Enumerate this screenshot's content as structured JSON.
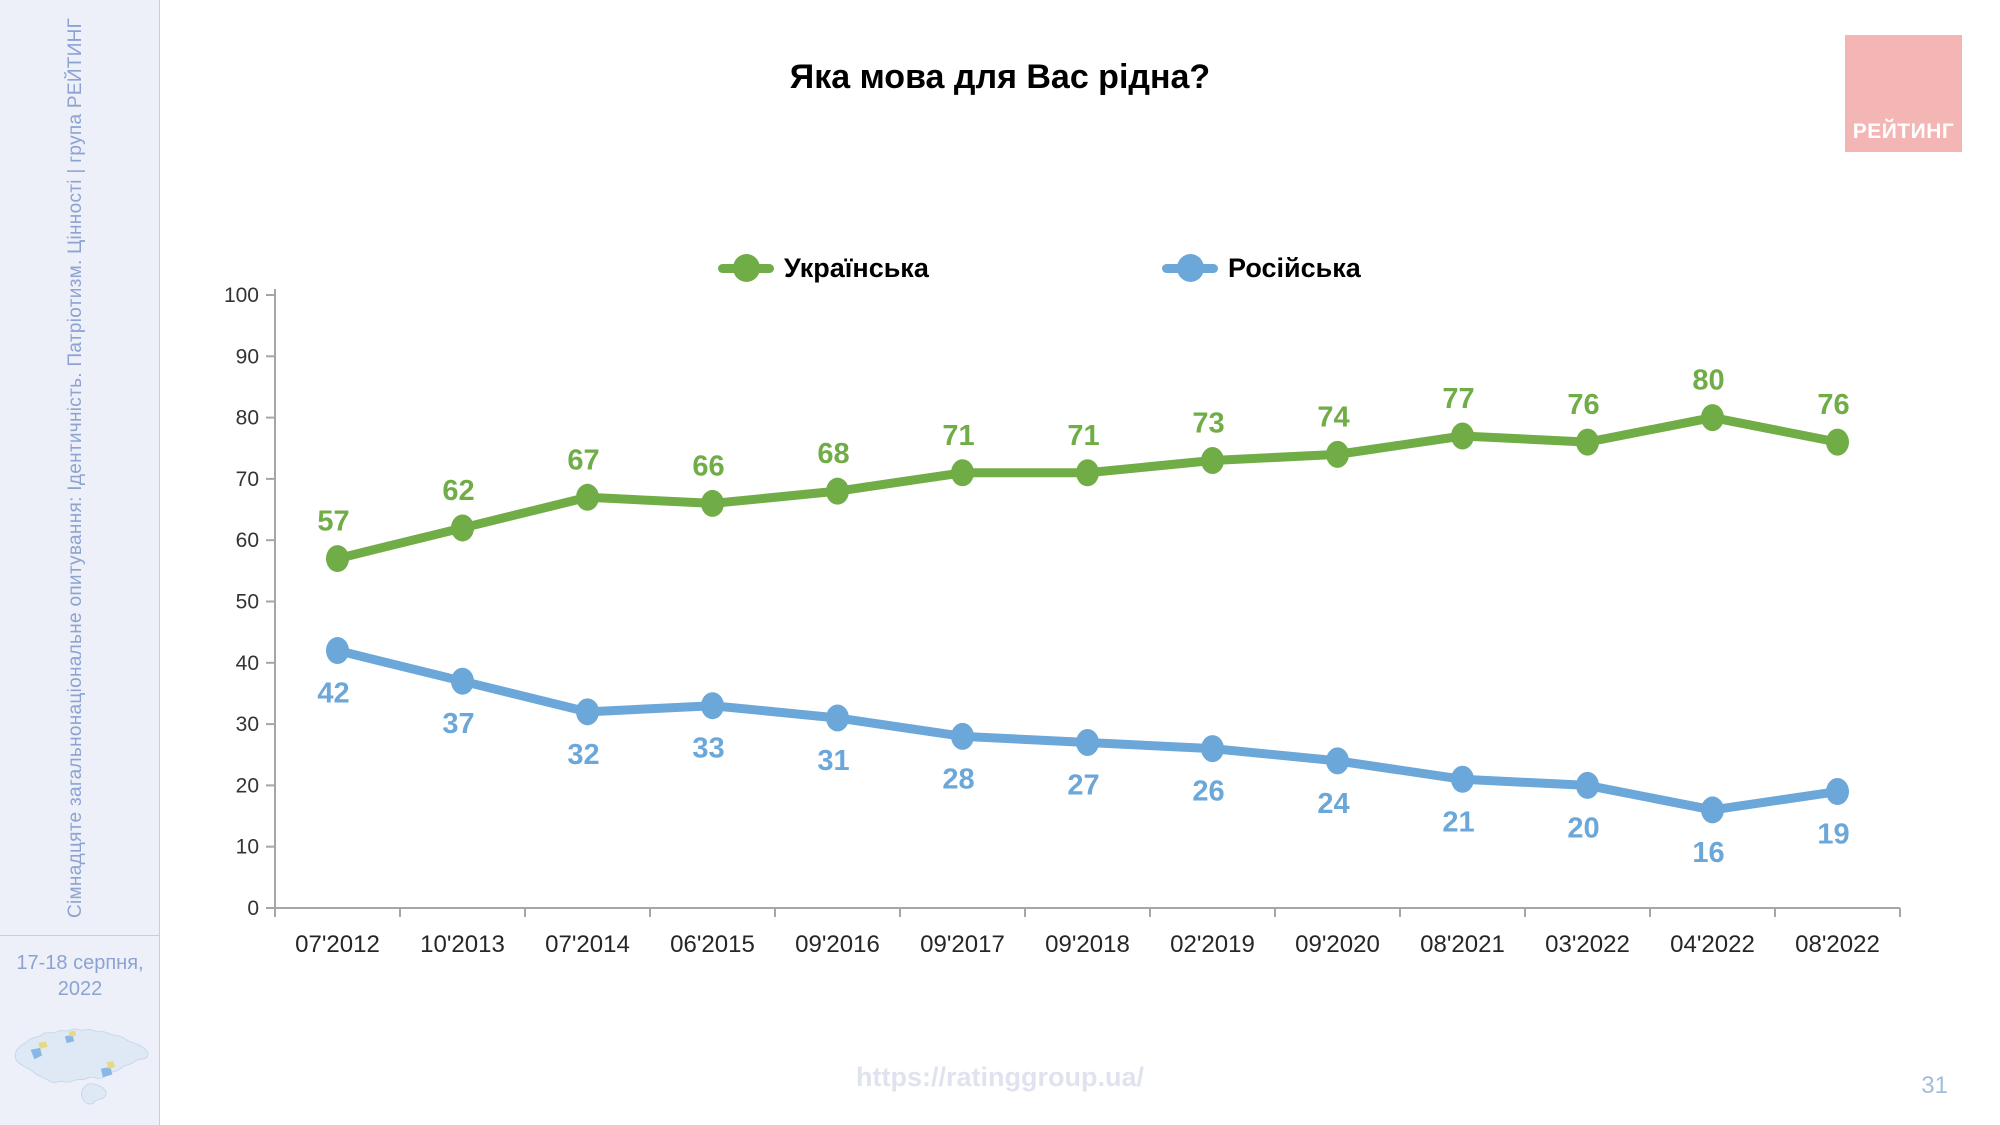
{
  "slide": {
    "title": "Яка мова для Вас рідна?",
    "url": "https://ratinggroup.ua/",
    "page_number": "31",
    "logo_text": "РЕЙТИНГ",
    "logo_icon": "rating-group-logo",
    "accent_colors": {
      "ukrainian_green": "#70AD47",
      "russian_blue": "#6BA7D8",
      "logo_pink": "#f3b6b4",
      "sidebar_text_blue": "#8ca3d1",
      "axis_gray": "#a6a6a6"
    }
  },
  "sidebar": {
    "survey_label": "Сімнадцяте загальнонаціональне опитування: Ідентичність. Патріотизм. Цінності | група РЕЙТИНГ",
    "date_line1": "17-18 серпня,",
    "date_line2": "2022",
    "map_icon": "ukraine-map-icon"
  },
  "chart_data": {
    "type": "line",
    "title": "Яка мова для Вас рідна?",
    "categories": [
      "07'2012",
      "10'2013",
      "07'2014",
      "06'2015",
      "09'2016",
      "09'2017",
      "09'2018",
      "02'2019",
      "09'2020",
      "08'2021",
      "03'2022",
      "04'2022",
      "08'2022"
    ],
    "series": [
      {
        "name": "Українська",
        "color": "#70AD47",
        "label_position": "above",
        "values": [
          57,
          62,
          67,
          66,
          68,
          71,
          71,
          73,
          74,
          77,
          76,
          80,
          76
        ]
      },
      {
        "name": "Російська",
        "color": "#6BA7D8",
        "label_position": "below",
        "values": [
          42,
          37,
          32,
          33,
          31,
          28,
          27,
          26,
          24,
          21,
          20,
          16,
          19
        ]
      }
    ],
    "xlabel": "",
    "ylabel": "",
    "ylim": [
      0,
      100
    ],
    "ytick_step": 10,
    "grid": false,
    "legend_position": "top",
    "data_labels": true
  }
}
